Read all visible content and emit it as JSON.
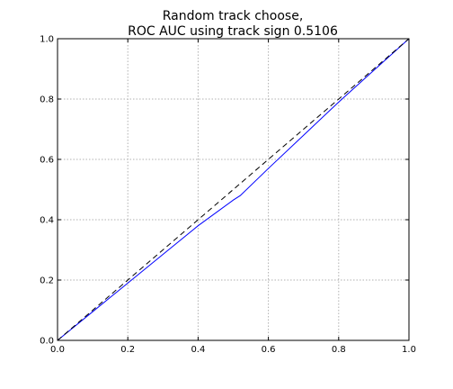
{
  "chart_data": {
    "type": "line",
    "title_lines": [
      "Random track choose,",
      "ROC AUC using track sign 0.5106"
    ],
    "xlabel": "",
    "ylabel": "",
    "xlim": [
      0.0,
      1.0
    ],
    "ylim": [
      0.0,
      1.0
    ],
    "x_ticks": [
      "0.0",
      "0.2",
      "0.4",
      "0.6",
      "0.8",
      "1.0"
    ],
    "y_ticks": [
      "0.0",
      "0.2",
      "0.4",
      "0.6",
      "0.8",
      "1.0"
    ],
    "grid": true,
    "legend": "none",
    "series": [
      {
        "style": "solid",
        "color": "#0000ff",
        "x": [
          0.0,
          0.1,
          0.2,
          0.3,
          0.4,
          0.5,
          0.52,
          0.6,
          0.7,
          0.8,
          0.9,
          1.0
        ],
        "y": [
          0.0,
          0.095,
          0.19,
          0.285,
          0.38,
          0.465,
          0.48,
          0.57,
          0.68,
          0.79,
          0.895,
          1.0
        ]
      },
      {
        "style": "dashed",
        "color": "#000000",
        "x": [
          0.0,
          1.0
        ],
        "y": [
          0.0,
          1.0
        ]
      }
    ]
  }
}
